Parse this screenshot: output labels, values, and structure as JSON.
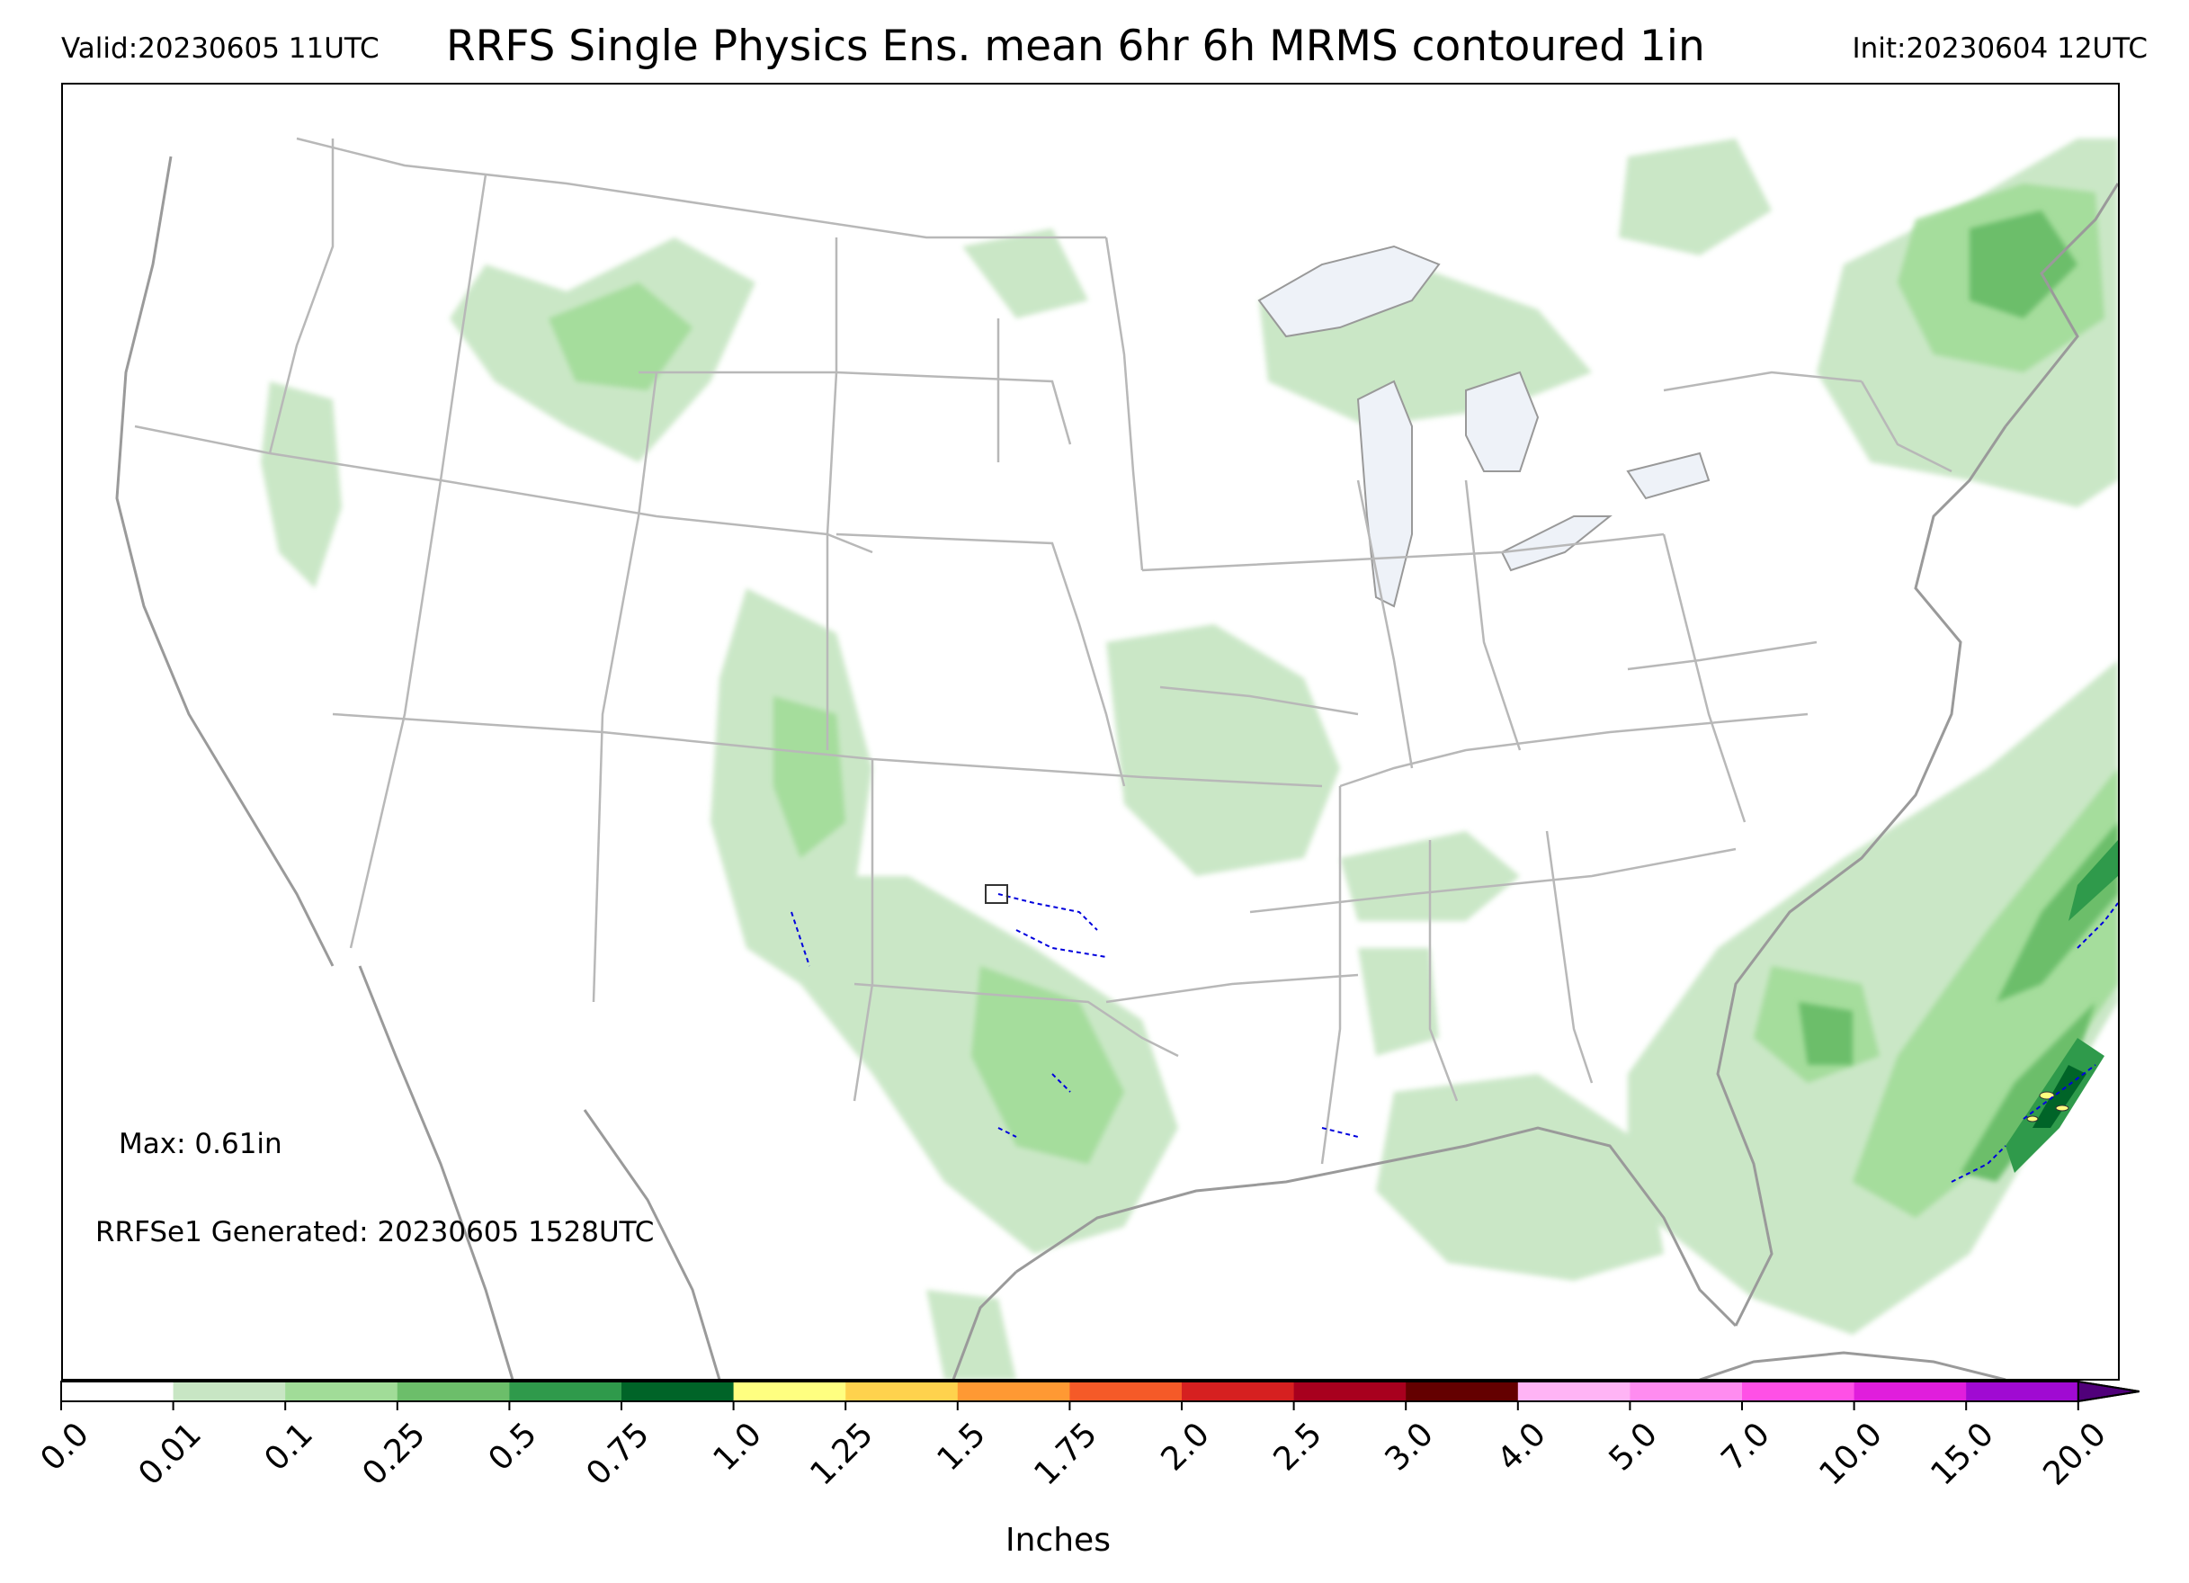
{
  "header": {
    "valid": "Valid:20230605 11UTC",
    "title": "RRFS Single Physics Ens. mean 6hr 6h MRMS contoured 1in",
    "init": "Init:20230604 12UTC"
  },
  "annotations": {
    "max": "Max: 0.61in",
    "generated": "RRFSe1 Generated: 20230605 1528UTC"
  },
  "colorbar": {
    "label": "Inches",
    "ticks": [
      "0.0",
      "0.01",
      "0.1",
      "0.25",
      "0.5",
      "0.75",
      "1.0",
      "1.25",
      "1.5",
      "1.75",
      "2.0",
      "2.5",
      "3.0",
      "4.0",
      "5.0",
      "7.0",
      "10.0",
      "15.0",
      "20.0"
    ],
    "colors": [
      "#ffffff",
      "#c8e6c4",
      "#a1dc98",
      "#6cbe6a",
      "#2f9a4b",
      "#006428",
      "#ffff80",
      "#ffd24d",
      "#ff9933",
      "#f55a28",
      "#d62020",
      "#a8001e",
      "#640000",
      "#ffb4f5",
      "#ff8cf0",
      "#ff50e6",
      "#e01edc",
      "#a00ad2"
    ],
    "extend_color": "#50007a"
  },
  "map_colors": {
    "boundary": "#aaaaaa",
    "coast": "#999999",
    "lakes": "#eef2f8",
    "contour_1in": "#0000dd"
  }
}
